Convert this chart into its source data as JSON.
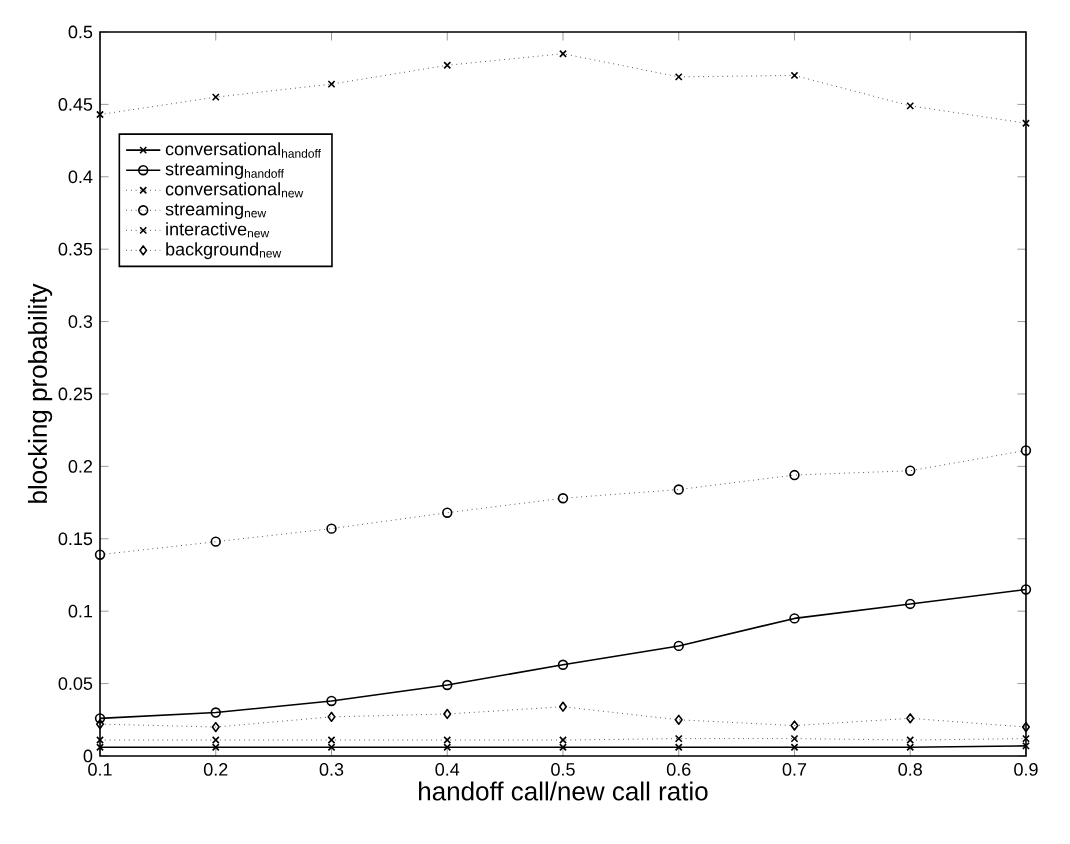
{
  "chart_data": {
    "type": "line",
    "xlabel": "handoff call/new call ratio",
    "ylabel": "blocking probability",
    "x": [
      0.1,
      0.2,
      0.3,
      0.4,
      0.5,
      0.6,
      0.7,
      0.8,
      0.9
    ],
    "xlim": [
      0.1,
      0.9
    ],
    "xticks": [
      0.1,
      0.2,
      0.3,
      0.4,
      0.5,
      0.6,
      0.7,
      0.8,
      0.9
    ],
    "ylim": [
      0,
      0.5
    ],
    "yticks": [
      0,
      0.05,
      0.1,
      0.15,
      0.2,
      0.25,
      0.3,
      0.35,
      0.4,
      0.45,
      0.5
    ],
    "grid": false,
    "legend": "top left",
    "series": [
      {
        "name": "conversational$_{handoff}$",
        "color": "#000000",
        "line_style": "solid",
        "marker": "cross",
        "values": [
          0.006,
          0.006,
          0.006,
          0.006,
          0.006,
          0.006,
          0.006,
          0.006,
          0.007
        ]
      },
      {
        "name": "streaming$_{handoff}$",
        "color": "#000000",
        "line_style": "solid",
        "marker": "circle",
        "values": [
          0.026,
          0.03,
          0.038,
          0.049,
          0.063,
          0.076,
          0.095,
          0.105,
          0.115
        ]
      },
      {
        "name": "conversational$_{new}$",
        "color": "#000000",
        "line_style": "dotted",
        "marker": "cross",
        "values": [
          0.011,
          0.011,
          0.011,
          0.011,
          0.011,
          0.012,
          0.012,
          0.011,
          0.012
        ]
      },
      {
        "name": "streaming$_{new}$",
        "color": "#000000",
        "line_style": "dotted",
        "marker": "circle",
        "values": [
          0.139,
          0.148,
          0.157,
          0.168,
          0.178,
          0.184,
          0.194,
          0.197,
          0.211
        ]
      },
      {
        "name": "interactive$_{new}$",
        "color": "#000000",
        "line_style": "dotted",
        "marker": "cross",
        "values": [
          0.443,
          0.455,
          0.464,
          0.477,
          0.485,
          0.469,
          0.47,
          0.449,
          0.437
        ]
      },
      {
        "name": "background$_{new}$",
        "color": "#000000",
        "line_style": "dotted",
        "marker": "diamond",
        "values": [
          0.022,
          0.02,
          0.027,
          0.029,
          0.034,
          0.025,
          0.021,
          0.026,
          0.02
        ]
      }
    ]
  }
}
